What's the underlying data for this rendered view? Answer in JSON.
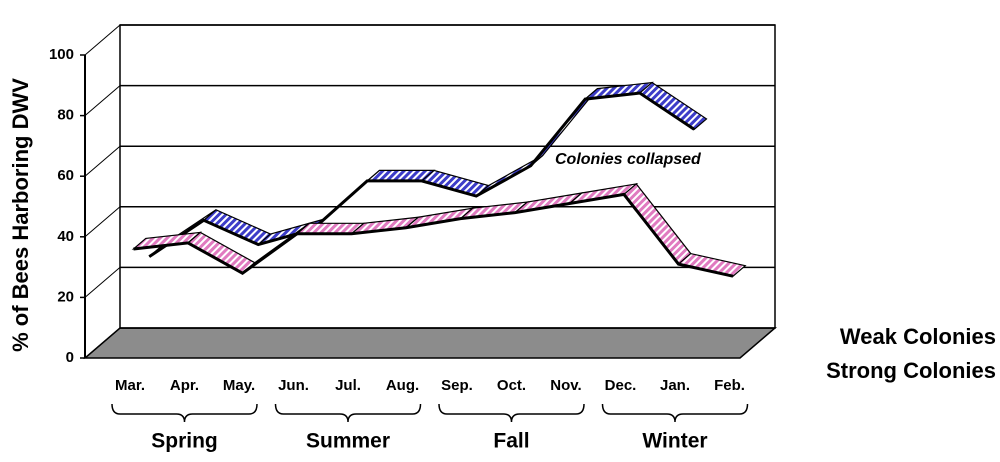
{
  "chart_data": {
    "type": "line3d",
    "y_label": "% of Bees Harboring DWV",
    "categories": [
      "Mar.",
      "Apr.",
      "May.",
      "Jun.",
      "Jul.",
      "Aug.",
      "Sep.",
      "Oct.",
      "Nov.",
      "Dec.",
      "Jan.",
      "Feb."
    ],
    "seasons": [
      "Spring",
      "Summer",
      "Fall",
      "Winter"
    ],
    "series": [
      {
        "name": "Weak Colonies",
        "color": "#3c3cc8",
        "values": [
          28,
          40,
          32,
          37,
          53,
          53,
          48,
          58,
          80,
          82,
          70,
          null
        ]
      },
      {
        "name": "Strong Colonies",
        "color": "#e07ac0",
        "values": [
          35,
          37,
          27,
          40,
          40,
          42,
          45,
          47,
          50,
          53,
          30,
          26
        ]
      }
    ],
    "annotation": "Colonies collapsed",
    "ylim": [
      0,
      100
    ],
    "yticks": [
      0,
      20,
      40,
      60,
      80,
      100
    ],
    "grid": true
  }
}
